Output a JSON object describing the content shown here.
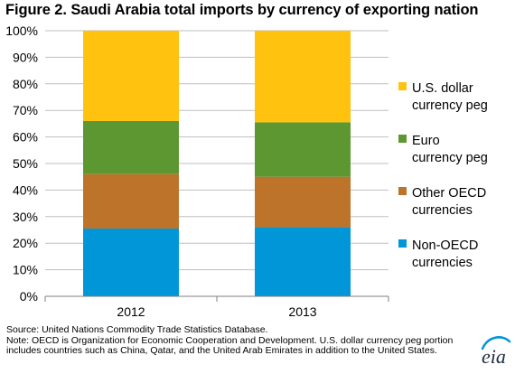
{
  "chart_data": {
    "type": "bar",
    "stacked": true,
    "title": "Figure 2.  Saudi Arabia total imports by currency of exporting nation",
    "categories": [
      "2012",
      "2013"
    ],
    "series": [
      {
        "name": "Non-OECD currencies",
        "label_lines": [
          "Non-OECD",
          "currencies"
        ],
        "color": "#0096d7",
        "values": [
          25.5,
          26
        ]
      },
      {
        "name": "Other OECD currencies",
        "label_lines": [
          "Other OECD",
          "currencies"
        ],
        "color": "#bd732a",
        "values": [
          20.5,
          19
        ]
      },
      {
        "name": "Euro currency peg",
        "label_lines": [
          "Euro",
          "currency peg"
        ],
        "color": "#5d9732",
        "values": [
          20,
          20.5
        ]
      },
      {
        "name": "U.S. dollar currency peg",
        "label_lines": [
          "U.S. dollar",
          "currency peg"
        ],
        "color": "#ffc20e",
        "values": [
          34,
          34.5
        ]
      }
    ],
    "yticks": [
      "0%",
      "10%",
      "20%",
      "30%",
      "40%",
      "50%",
      "60%",
      "70%",
      "80%",
      "90%",
      "100%"
    ],
    "ylim": [
      0,
      100
    ],
    "xlabel": "",
    "ylabel": "",
    "grid": true,
    "legend": "right"
  },
  "source_text": "Source:  United Nations Commodity Trade Statistics Database.",
  "note_text": "Note:  OECD is Organization for Economic Cooperation and Development.  U.S. dollar currency peg portion includes countries such as China, Qatar, and the United Arab Emirates in addition to the United States.",
  "logo_text": "eia",
  "colors": {
    "gridline": "#bfbfbf",
    "axis": "#7f7f7f",
    "logo_arc": "#0096d7",
    "logo_text": "#1f2a44"
  }
}
